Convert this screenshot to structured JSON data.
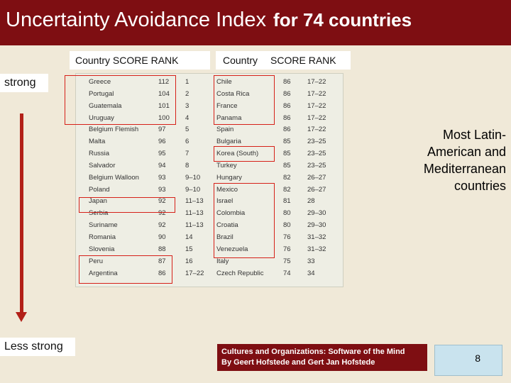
{
  "title": {
    "main": "Uncertainty Avoidance Index",
    "sub": "for 74 countries"
  },
  "header": {
    "left": {
      "country": "Country",
      "score": "SCORE",
      "rank": "RANK"
    },
    "right": {
      "country": "Country",
      "score": "SCORE",
      "rank": "RANK"
    }
  },
  "labels": {
    "strong": "strong",
    "less_strong": "Less strong"
  },
  "note": "Most Latin-American and Mediterranean countries",
  "citation": {
    "line1": "Cultures and Organizations: Software of the Mind",
    "line2": "By Geert Hofstede and Gert Jan Hofstede"
  },
  "page_number": "8",
  "colors": {
    "title_bar": "#7e0e12",
    "highlight_box": "#d62018",
    "arrow": "#b22018",
    "page_box": "#c9e3ee"
  },
  "table_left": [
    {
      "country": "Greece",
      "score": "112",
      "rank": "1"
    },
    {
      "country": "Portugal",
      "score": "104",
      "rank": "2"
    },
    {
      "country": "Guatemala",
      "score": "101",
      "rank": "3"
    },
    {
      "country": "Uruguay",
      "score": "100",
      "rank": "4"
    },
    {
      "country": "Belgium Flemish",
      "score": "97",
      "rank": "5"
    },
    {
      "country": "Malta",
      "score": "96",
      "rank": "6"
    },
    {
      "country": "Russia",
      "score": "95",
      "rank": "7"
    },
    {
      "country": "Salvador",
      "score": "94",
      "rank": "8"
    },
    {
      "country": "Belgium Walloon",
      "score": "93",
      "rank": "9–10"
    },
    {
      "country": "Poland",
      "score": "93",
      "rank": "9–10"
    },
    {
      "country": "Japan",
      "score": "92",
      "rank": "11–13"
    },
    {
      "country": "Serbia",
      "score": "92",
      "rank": "11–13"
    },
    {
      "country": "Suriname",
      "score": "92",
      "rank": "11–13"
    },
    {
      "country": "Romania",
      "score": "90",
      "rank": "14"
    },
    {
      "country": "Slovenia",
      "score": "88",
      "rank": "15"
    },
    {
      "country": "Peru",
      "score": "87",
      "rank": "16"
    },
    {
      "country": "Argentina",
      "score": "86",
      "rank": "17–22"
    }
  ],
  "table_right": [
    {
      "country": "Chile",
      "score": "86",
      "rank": "17–22"
    },
    {
      "country": "Costa Rica",
      "score": "86",
      "rank": "17–22"
    },
    {
      "country": "France",
      "score": "86",
      "rank": "17–22"
    },
    {
      "country": "Panama",
      "score": "86",
      "rank": "17–22"
    },
    {
      "country": "Spain",
      "score": "86",
      "rank": "17–22"
    },
    {
      "country": "Bulgaria",
      "score": "85",
      "rank": "23–25"
    },
    {
      "country": "Korea (South)",
      "score": "85",
      "rank": "23–25"
    },
    {
      "country": "Turkey",
      "score": "85",
      "rank": "23–25"
    },
    {
      "country": "Hungary",
      "score": "82",
      "rank": "26–27"
    },
    {
      "country": "Mexico",
      "score": "82",
      "rank": "26–27"
    },
    {
      "country": "Israel",
      "score": "81",
      "rank": "28"
    },
    {
      "country": "Colombia",
      "score": "80",
      "rank": "29–30"
    },
    {
      "country": "Croatia",
      "score": "80",
      "rank": "29–30"
    },
    {
      "country": "Brazil",
      "score": "76",
      "rank": "31–32"
    },
    {
      "country": "Venezuela",
      "score": "76",
      "rank": "31–32"
    },
    {
      "country": "Italy",
      "score": "75",
      "rank": "33"
    },
    {
      "country": "Czech Republic",
      "score": "74",
      "rank": "34"
    }
  ]
}
